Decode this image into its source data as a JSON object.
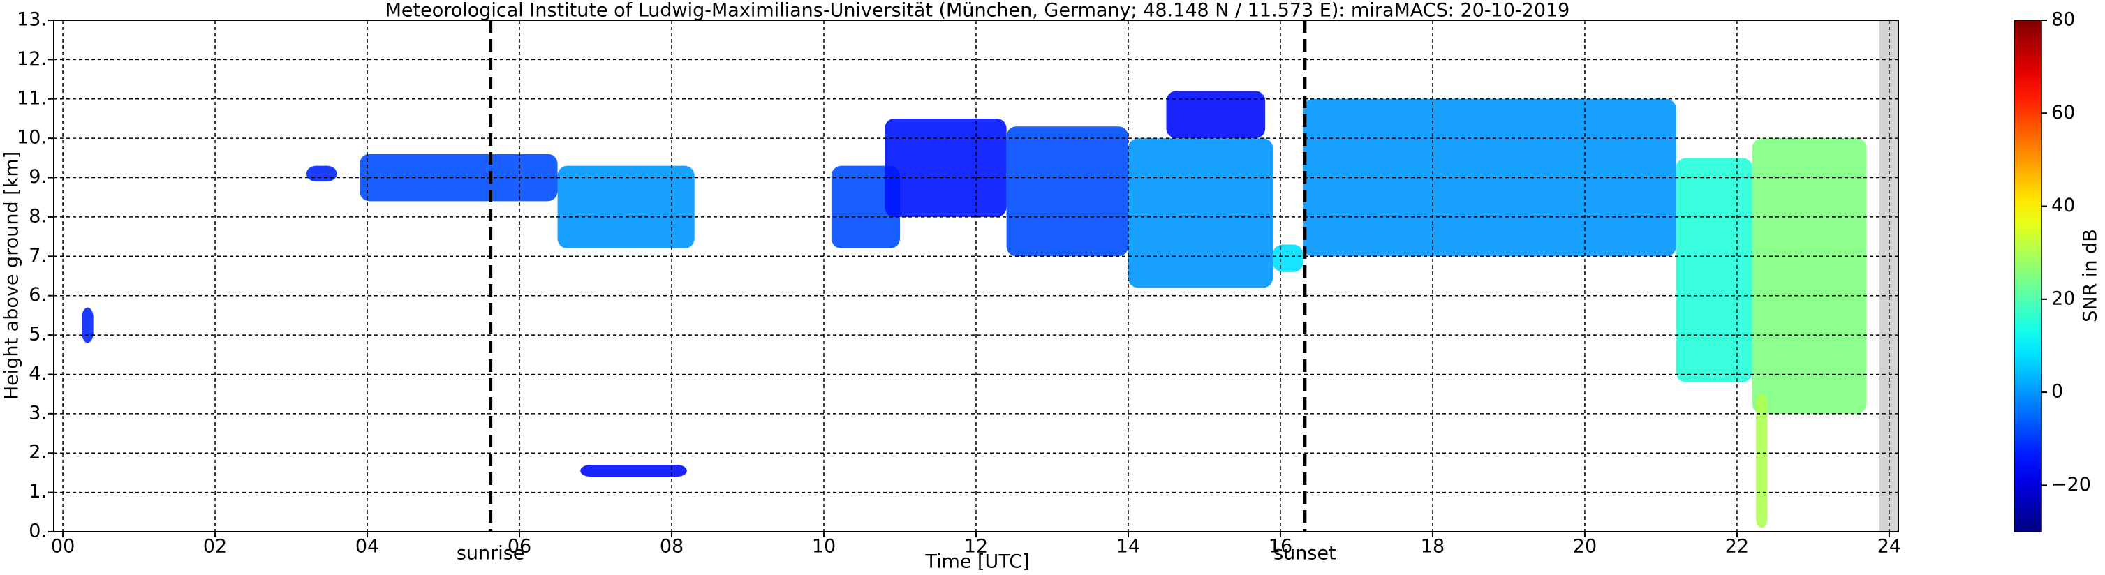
{
  "chart_data": {
    "type": "heatmap",
    "title": "Meteorological Institute of Ludwig-Maximilians-Universität (München, Germany; 48.148 N / 11.573 E):    miraMACS: 20-10-2019",
    "xlabel": "Time [UTC]",
    "ylabel": "Height above ground [km]",
    "xlim": [
      -0.12,
      24.12
    ],
    "xticks": [
      {
        "value": 0,
        "label": "00"
      },
      {
        "value": 2,
        "label": "02"
      },
      {
        "value": 4,
        "label": "04"
      },
      {
        "value": 6,
        "label": "06"
      },
      {
        "value": 8,
        "label": "08"
      },
      10,
      12,
      14,
      16,
      18,
      20,
      22,
      24
    ],
    "ylim": [
      0,
      13
    ],
    "yticks": [
      {
        "value": 0,
        "label": "0."
      },
      {
        "value": 1,
        "label": "1."
      },
      {
        "value": 2,
        "label": "2."
      },
      {
        "value": 3,
        "label": "3."
      },
      {
        "value": 4,
        "label": "4."
      },
      {
        "value": 5,
        "label": "5."
      },
      {
        "value": 6,
        "label": "6."
      },
      {
        "value": 7,
        "label": "7."
      },
      {
        "value": 8,
        "label": "8."
      },
      {
        "value": 9,
        "label": "9."
      },
      {
        "value": 10,
        "label": "10."
      },
      {
        "value": 11,
        "label": "11."
      },
      {
        "value": 12,
        "label": "12."
      },
      {
        "value": 13,
        "label": "13."
      }
    ],
    "grid": true,
    "no_data_x": [
      23.87,
      24.12
    ],
    "annotations": [
      {
        "text": "sunrise",
        "x": 5.62
      },
      {
        "text": "sunset",
        "x": 16.32
      }
    ],
    "colorbar": {
      "label": "SNR in dB",
      "lim": [
        -30,
        80
      ],
      "ticks": [
        {
          "value": -20,
          "label": "−20"
        },
        0,
        20,
        40,
        60,
        80
      ]
    },
    "echoes": [
      {
        "x": [
          0.25,
          0.4
        ],
        "base": 4.8,
        "top": 5.7,
        "snr": -12
      },
      {
        "x": [
          3.2,
          3.6
        ],
        "base": 8.9,
        "top": 9.3,
        "snr": -12
      },
      {
        "x": [
          3.9,
          6.5
        ],
        "base": 8.4,
        "top": 9.6,
        "snr": -8
      },
      {
        "x": [
          6.5,
          8.3
        ],
        "base": 7.2,
        "top": 9.3,
        "snr": 0
      },
      {
        "x": [
          10.1,
          11.0
        ],
        "base": 7.2,
        "top": 9.3,
        "snr": -8
      },
      {
        "x": [
          10.8,
          12.4
        ],
        "base": 8.0,
        "top": 10.5,
        "snr": -14
      },
      {
        "x": [
          12.4,
          14.0
        ],
        "base": 7.0,
        "top": 10.3,
        "snr": -8
      },
      {
        "x": [
          14.0,
          15.9
        ],
        "base": 6.2,
        "top": 10.0,
        "snr": 0
      },
      {
        "x": [
          14.5,
          15.8
        ],
        "base": 10.0,
        "top": 11.2,
        "snr": -15
      },
      {
        "x": [
          15.9,
          16.3
        ],
        "base": 6.6,
        "top": 7.3,
        "snr": 8
      },
      {
        "x": [
          16.3,
          21.2
        ],
        "base": 7.0,
        "top": 11.0,
        "snr": 0
      },
      {
        "x": [
          21.2,
          22.2
        ],
        "base": 3.8,
        "top": 9.5,
        "snr": 15
      },
      {
        "x": [
          22.2,
          23.7
        ],
        "base": 3.0,
        "top": 10.0,
        "snr": 25
      },
      {
        "x": [
          22.25,
          22.4
        ],
        "base": 0.1,
        "top": 3.5,
        "snr": 30
      },
      {
        "x": [
          6.8,
          8.2
        ],
        "base": 1.4,
        "top": 1.7,
        "snr": -15
      }
    ]
  }
}
